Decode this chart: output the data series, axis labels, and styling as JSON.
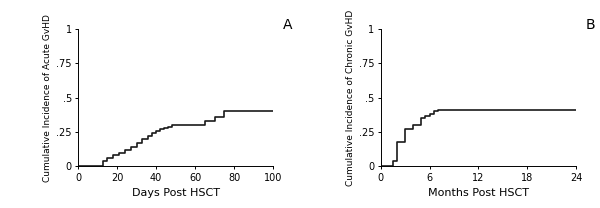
{
  "panel_A": {
    "label": "A",
    "xlabel": "Days Post HSCT",
    "ylabel": "Cumulative Incidence of Acute GvHD",
    "xlim": [
      0,
      100
    ],
    "ylim": [
      0,
      1
    ],
    "xticks": [
      0,
      20,
      40,
      60,
      80,
      100
    ],
    "yticks": [
      0,
      0.25,
      0.5,
      0.75,
      1
    ],
    "ytick_labels": [
      "0",
      ".25",
      ".5",
      ".75",
      "1"
    ],
    "step_x": [
      0,
      13,
      13,
      15,
      15,
      18,
      18,
      21,
      21,
      24,
      24,
      27,
      27,
      30,
      30,
      33,
      33,
      36,
      36,
      38,
      38,
      40,
      40,
      42,
      42,
      44,
      44,
      46,
      46,
      48,
      48,
      50,
      50,
      65,
      65,
      70,
      70,
      75,
      75,
      80,
      80,
      100
    ],
    "step_y": [
      0,
      0,
      0.04,
      0.04,
      0.06,
      0.06,
      0.08,
      0.08,
      0.1,
      0.1,
      0.12,
      0.12,
      0.14,
      0.14,
      0.17,
      0.17,
      0.2,
      0.2,
      0.22,
      0.22,
      0.24,
      0.24,
      0.26,
      0.26,
      0.27,
      0.27,
      0.28,
      0.28,
      0.29,
      0.29,
      0.3,
      0.3,
      0.3,
      0.3,
      0.33,
      0.33,
      0.36,
      0.36,
      0.4,
      0.4,
      0.4,
      0.4
    ]
  },
  "panel_B": {
    "label": "B",
    "xlabel": "Months Post HSCT",
    "ylabel": "Cumulative Incidence of Chronic GvHD",
    "xlim": [
      0,
      24
    ],
    "ylim": [
      0,
      1
    ],
    "xticks": [
      0,
      6,
      12,
      18,
      24
    ],
    "yticks": [
      0,
      0.25,
      0.5,
      0.75,
      1
    ],
    "ytick_labels": [
      "0",
      ".25",
      ".5",
      ".75",
      "1"
    ],
    "step_x": [
      0,
      1.5,
      1.5,
      2,
      2,
      3,
      3,
      4,
      4,
      5,
      5,
      5.5,
      5.5,
      6,
      6,
      6.5,
      6.5,
      7,
      7,
      7.5,
      7.5,
      24
    ],
    "step_y": [
      0,
      0,
      0.04,
      0.04,
      0.18,
      0.18,
      0.27,
      0.27,
      0.3,
      0.3,
      0.35,
      0.35,
      0.37,
      0.37,
      0.38,
      0.38,
      0.4,
      0.4,
      0.41,
      0.41,
      0.41,
      0.41
    ]
  },
  "line_color": "#1a1a1a",
  "line_width": 1.2,
  "bg_color": "#ffffff",
  "axes_bg": "#ffffff",
  "tick_fontsize": 7,
  "xlabel_fontsize": 8,
  "ylabel_fontsize": 6.5,
  "panel_label_fontsize": 10
}
